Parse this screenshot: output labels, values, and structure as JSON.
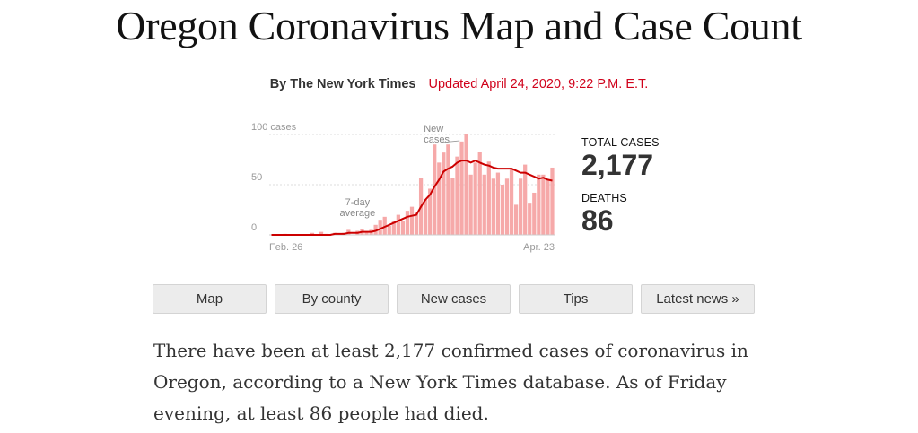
{
  "page": {
    "title": "Oregon Coronavirus Map and Case Count",
    "byline": "By The New York Times",
    "updated": "Updated April 24, 2020, 9:22 P.M. E.T."
  },
  "stats": {
    "total_cases_label": "TOTAL CASES",
    "total_cases_value": "2,177",
    "deaths_label": "DEATHS",
    "deaths_value": "86"
  },
  "nav": {
    "map": "Map",
    "by_county": "By county",
    "new_cases": "New cases",
    "tips": "Tips",
    "latest_news": "Latest news »"
  },
  "summary": "There have been at least 2,177 confirmed cases of coronavirus in Oregon, according to a New York Times database. As of Friday evening, at least 86 people had died.",
  "colors": {
    "bar": "#f6a9a9",
    "average_line": "#cc0000",
    "updated_text": "#d0021b",
    "grid": "#dddddd"
  },
  "chart_data": {
    "type": "bar",
    "x_start_label": "Feb. 26",
    "x_end_label": "Apr. 23",
    "ylim": [
      0,
      100
    ],
    "y_ticks": [
      {
        "value": 100,
        "label": "100 cases"
      },
      {
        "value": 50,
        "label": "50"
      },
      {
        "value": 0,
        "label": "0"
      }
    ],
    "annotations": {
      "bars": "New\ncases",
      "line": "7-day\naverage"
    },
    "series": [
      {
        "name": "New cases",
        "kind": "bar",
        "values": [
          0,
          0,
          0,
          1,
          0,
          0,
          0,
          0,
          0,
          2,
          0,
          3,
          1,
          0,
          2,
          1,
          2,
          5,
          0,
          4,
          6,
          3,
          5,
          10,
          15,
          18,
          9,
          14,
          20,
          14,
          24,
          28,
          23,
          57,
          35,
          46,
          90,
          72,
          82,
          90,
          57,
          78,
          93,
          100,
          60,
          72,
          83,
          60,
          73,
          56,
          62,
          50,
          56,
          65,
          30,
          56,
          70,
          32,
          42,
          60,
          60,
          55,
          67
        ]
      },
      {
        "name": "7-day average",
        "kind": "line",
        "values": [
          0,
          0,
          0,
          0,
          0,
          0,
          0,
          0,
          0,
          0,
          0,
          0,
          0,
          0,
          1,
          1,
          1,
          2,
          2,
          2,
          3,
          3,
          3,
          4,
          6,
          8,
          10,
          12,
          14,
          16,
          18,
          19,
          20,
          28,
          35,
          40,
          48,
          55,
          63,
          66,
          68,
          72,
          74,
          74,
          72,
          74,
          72,
          70,
          69,
          67,
          66,
          66,
          66,
          66,
          64,
          62,
          62,
          60,
          58,
          56,
          57,
          55,
          54
        ]
      }
    ]
  }
}
